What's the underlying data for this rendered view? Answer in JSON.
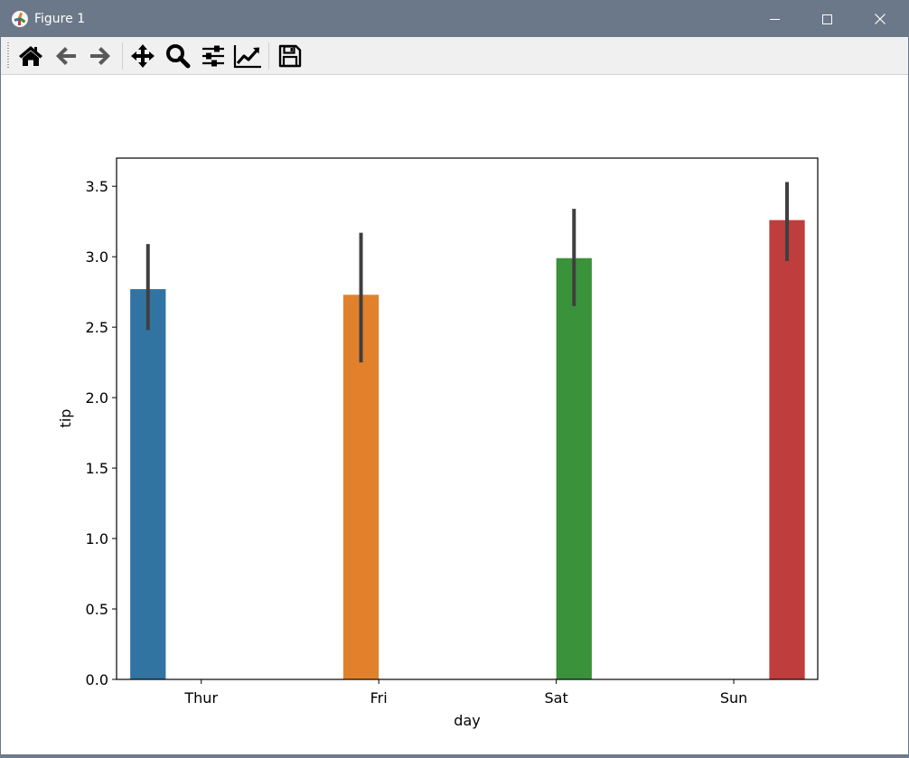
{
  "window": {
    "title": "Figure 1",
    "icon": "matplotlib-logo-icon",
    "controls": [
      "minimize-icon",
      "maximize-icon",
      "close-icon"
    ]
  },
  "toolbar": {
    "tools": [
      {
        "name": "home",
        "icon": "home-icon"
      },
      {
        "name": "back",
        "icon": "arrow-left-icon"
      },
      {
        "name": "forward",
        "icon": "arrow-right-icon"
      },
      {
        "name": "pan",
        "icon": "move-arrows-icon"
      },
      {
        "name": "zoom",
        "icon": "magnifier-icon"
      },
      {
        "name": "configure-subplots",
        "icon": "sliders-icon"
      },
      {
        "name": "edit-axes",
        "icon": "line-chart-icon"
      },
      {
        "name": "save",
        "icon": "floppy-disk-icon"
      }
    ]
  },
  "chart_data": {
    "type": "bar",
    "title": "",
    "xlabel": "day",
    "ylabel": "tip",
    "categories": [
      "Thur",
      "Fri",
      "Sat",
      "Sun"
    ],
    "values": [
      2.77,
      2.73,
      2.99,
      3.26
    ],
    "error_low": [
      2.48,
      2.25,
      2.65,
      2.97
    ],
    "error_high": [
      3.09,
      3.17,
      3.34,
      3.53
    ],
    "colors": [
      "#3274a1",
      "#e1812c",
      "#3a923a",
      "#c03d3e"
    ],
    "errorbar_color": "#3f3f3f",
    "ylim": [
      0,
      3.7
    ],
    "yticks": [
      "0.0",
      "0.5",
      "1.0",
      "1.5",
      "2.0",
      "2.5",
      "3.0",
      "3.5"
    ],
    "grid": false,
    "legend": "none"
  }
}
